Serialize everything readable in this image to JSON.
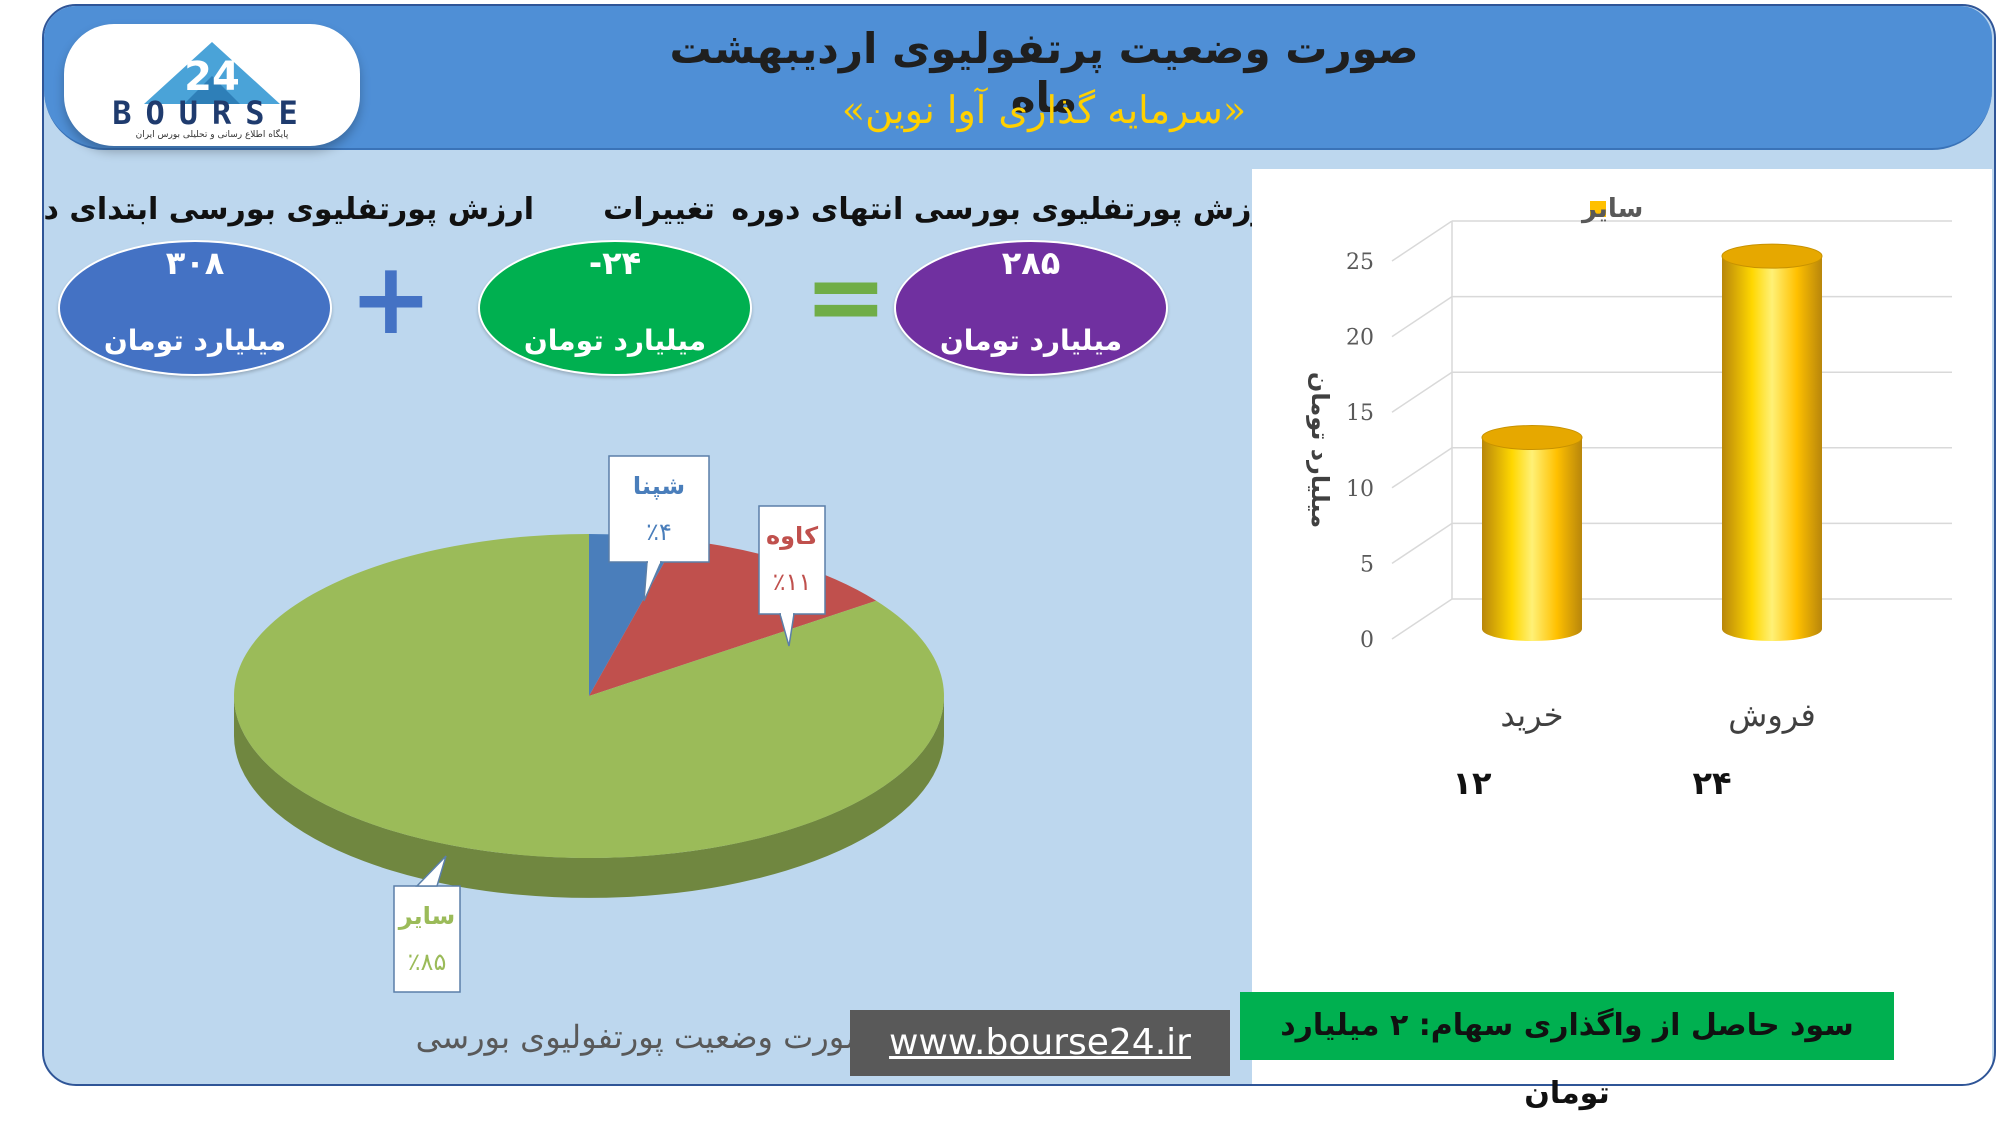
{
  "header": {
    "title": "صورت وضعیت پرتفولیوی اردیبهشت ماه",
    "subtitle": "«سرمایه گذاری آوا نوین»"
  },
  "logo": {
    "text": "BOURSE",
    "digits": "24",
    "tagline": "پایگاه اطلاع رسانی و تحلیلی بورس ایران"
  },
  "metrics": {
    "end": {
      "label": "ارزش پورتفلیوی بورسی انتهای دوره",
      "value": "۲۸۵",
      "unit": "میلیارد تومان",
      "color": "#7030a0"
    },
    "change": {
      "label": "تغییرات",
      "value": "-۲۴",
      "unit": "میلیارد تومان",
      "color": "#00b050"
    },
    "start": {
      "label": "ارزش پورتفلیوی بورسی ابتدای دوره",
      "value": "۳۰۸",
      "unit": "میلیارد تومان",
      "color": "#4472c4"
    },
    "equals_sign": "=",
    "plus_sign": "+"
  },
  "pie_caption": "صورت وضعیت پورتفولیوی بورسی",
  "footer": {
    "url": "www.bourse24.ir",
    "profit": "سود حاصل از واگذاری سهام: ۲ میلیارد تومان"
  },
  "chart_data": [
    {
      "type": "pie",
      "slices": [
        {
          "label": "شپنا",
          "value_text": "٪۴",
          "value": 4,
          "color": "#4a7ebb"
        },
        {
          "label": "کاوه",
          "value_text": "٪۱۱",
          "value": 11,
          "color": "#c0504d"
        },
        {
          "label": "سایر",
          "value_text": "٪۸۵",
          "value": 85,
          "color": "#9bbb59"
        }
      ]
    },
    {
      "type": "bar",
      "categories": [
        "خرید",
        "فروش"
      ],
      "category_values_text": [
        "۱۲",
        "۲۴"
      ],
      "series": [
        {
          "name": "سایر",
          "values": [
            12,
            24
          ],
          "color": "#ffc000"
        }
      ],
      "ylabel": "میلیارد تومان",
      "ylim": [
        0,
        25
      ],
      "yticks": [
        0,
        5,
        10,
        15,
        20,
        25
      ],
      "legend_position": "top",
      "grid": true
    }
  ]
}
